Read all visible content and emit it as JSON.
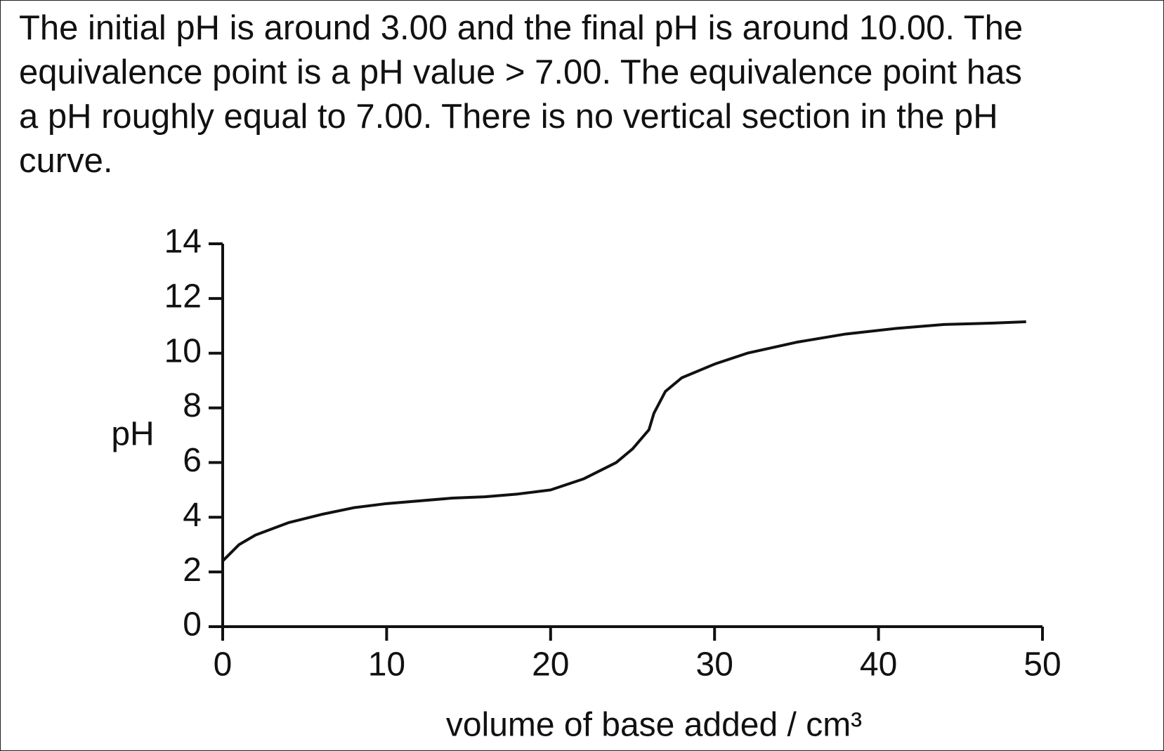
{
  "text": {
    "lines": [
      "The initial pH is around 3.00 and the final pH is around 10.00. The",
      "equivalence point is a pH value > 7.00. The equivalence point has",
      "a pH roughly equal to 7.00. There is no vertical section in the pH",
      "curve."
    ]
  },
  "chart_data": {
    "type": "line",
    "y_label": "pH",
    "x_label": "volume of base added / cm³",
    "x": [
      0,
      1,
      2,
      4,
      6,
      8,
      10,
      14,
      16,
      18,
      20,
      22,
      24,
      25,
      26,
      26.3,
      27,
      28,
      30,
      32,
      35,
      38,
      41,
      44,
      47,
      49
    ],
    "series": [
      {
        "color": "#111111",
        "values": [
          2.4,
          3.0,
          3.35,
          3.8,
          4.1,
          4.35,
          4.5,
          4.7,
          4.75,
          4.85,
          5.0,
          5.4,
          6.0,
          6.5,
          7.2,
          7.8,
          8.6,
          9.1,
          9.6,
          10.0,
          10.4,
          10.7,
          10.9,
          11.05,
          11.1,
          11.15
        ]
      }
    ],
    "xlim": [
      0,
      50
    ],
    "xticks": [
      0,
      10,
      20,
      30,
      40,
      50
    ],
    "ylim": [
      0,
      14
    ],
    "yticks": [
      0,
      2,
      4,
      6,
      8,
      10,
      12,
      14
    ]
  }
}
